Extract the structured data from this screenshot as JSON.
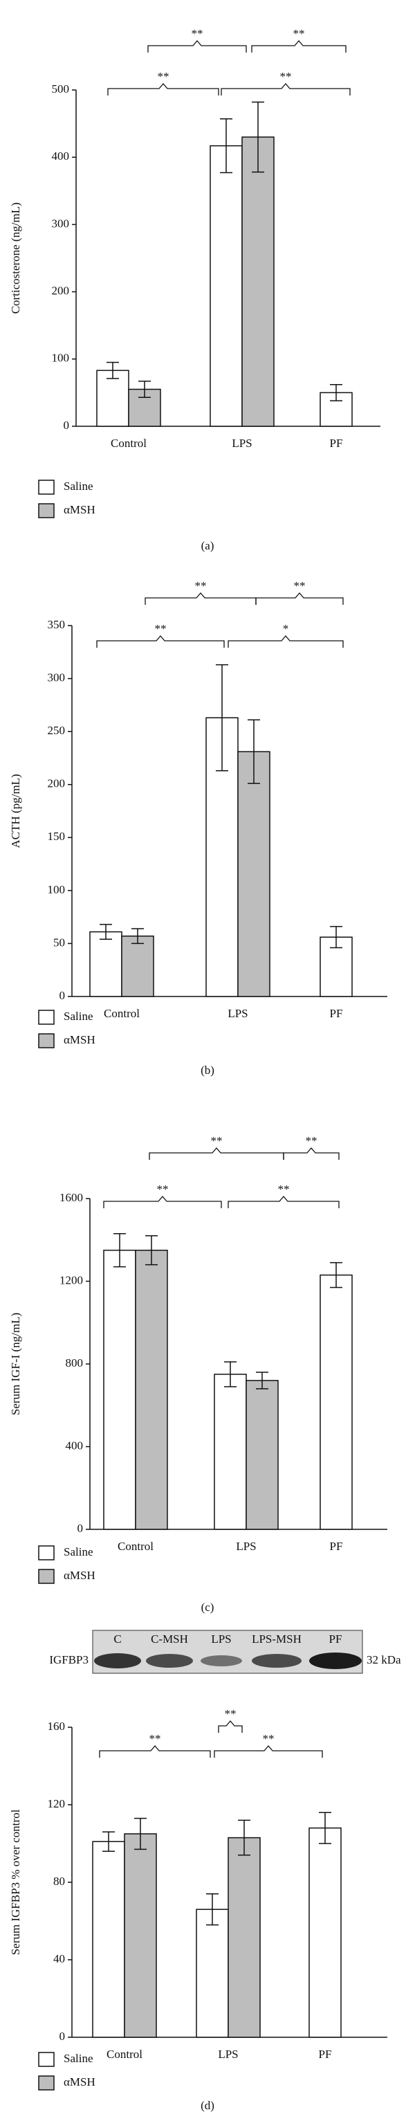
{
  "chart_data": [
    {
      "type": "bar",
      "panel": "(a)",
      "ylabel": "Corticosterone (ng/mL)",
      "categories": [
        "Control",
        "LPS",
        "PF"
      ],
      "series": [
        {
          "name": "Saline",
          "color": "#ffffff",
          "values": [
            83,
            417,
            50
          ],
          "errors": [
            12,
            40,
            12
          ]
        },
        {
          "name": "αMSH",
          "color": "#bdbdbd",
          "values": [
            55,
            430,
            null
          ],
          "errors": [
            12,
            52,
            null
          ]
        }
      ],
      "ylim": [
        0,
        500
      ],
      "yticks": [
        0,
        100,
        200,
        300,
        400,
        500
      ],
      "annotations": [
        "**",
        "**",
        "**",
        "**"
      ]
    },
    {
      "type": "bar",
      "panel": "(b)",
      "ylabel": "ACTH (pg/mL)",
      "categories": [
        "Control",
        "LPS",
        "PF"
      ],
      "series": [
        {
          "name": "Saline",
          "color": "#ffffff",
          "values": [
            61,
            263,
            56
          ],
          "errors": [
            7,
            50,
            10
          ]
        },
        {
          "name": "αMSH",
          "color": "#bdbdbd",
          "values": [
            57,
            231,
            null
          ],
          "errors": [
            7,
            30,
            null
          ]
        }
      ],
      "ylim": [
        0,
        350
      ],
      "yticks": [
        0,
        50,
        100,
        150,
        200,
        250,
        300,
        350
      ],
      "annotations": [
        "**",
        "*",
        "**",
        "**"
      ]
    },
    {
      "type": "bar",
      "panel": "(c)",
      "ylabel": "Serum IGF-I (ng/mL)",
      "categories": [
        "Control",
        "LPS",
        "PF"
      ],
      "series": [
        {
          "name": "Saline",
          "color": "#ffffff",
          "values": [
            1350,
            750,
            1230
          ],
          "errors": [
            80,
            60,
            60
          ]
        },
        {
          "name": "αMSH",
          "color": "#bdbdbd",
          "values": [
            1350,
            720,
            null
          ],
          "errors": [
            70,
            40,
            null
          ]
        }
      ],
      "ylim": [
        0,
        1600
      ],
      "yticks": [
        0,
        400,
        800,
        1200,
        1600
      ],
      "annotations": [
        "**",
        "**",
        "**",
        "**"
      ]
    },
    {
      "type": "bar",
      "panel": "(d)",
      "ylabel": "Serum IGFBP3 % over control",
      "categories": [
        "Control",
        "LPS",
        "PF"
      ],
      "series": [
        {
          "name": "Saline",
          "color": "#ffffff",
          "values": [
            101,
            66,
            108
          ],
          "errors": [
            5,
            8,
            8
          ]
        },
        {
          "name": "αMSH",
          "color": "#bdbdbd",
          "values": [
            105,
            103,
            null
          ],
          "errors": [
            8,
            9,
            null
          ]
        }
      ],
      "ylim": [
        0,
        160
      ],
      "yticks": [
        0,
        40,
        80,
        120,
        160
      ],
      "annotations": [
        "**",
        "**",
        "**"
      ]
    }
  ],
  "blot": {
    "label": "IGFBP3",
    "lanes": [
      "C",
      "C-MSH",
      "LPS",
      "LPS-MSH",
      "PF"
    ],
    "size": "32 kDa"
  }
}
